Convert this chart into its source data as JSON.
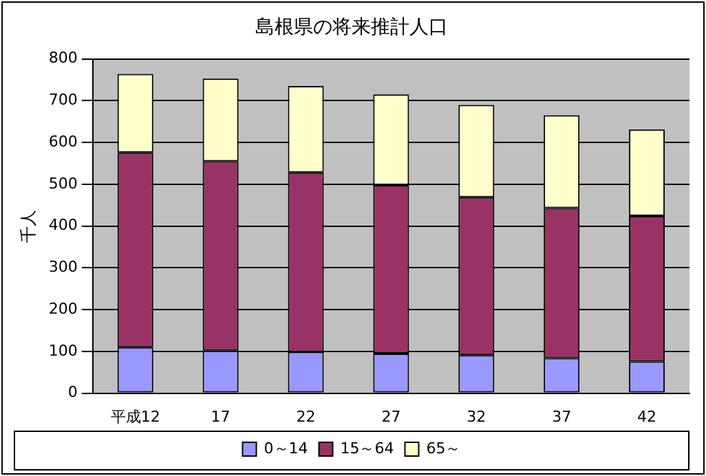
{
  "chart_data": {
    "type": "bar",
    "stacked": true,
    "title": "島根県の将来推計人口",
    "ylabel": "千人",
    "categories": [
      "平成12",
      "17",
      "22",
      "27",
      "32",
      "37",
      "42"
    ],
    "series": [
      {
        "name": "0～14",
        "color": "#9999ff",
        "values": [
          110,
          102,
          99,
          95,
          91,
          84,
          76
        ]
      },
      {
        "name": "15～64",
        "color": "#993366",
        "values": [
          466,
          453,
          429,
          403,
          378,
          359,
          348
        ]
      },
      {
        "name": "65～",
        "color": "#ffffcc",
        "values": [
          188,
          198,
          207,
          217,
          221,
          222,
          207
        ]
      }
    ],
    "ylim": [
      0,
      800
    ],
    "yticks": [
      0,
      100,
      200,
      300,
      400,
      500,
      600,
      700,
      800
    ],
    "grid": "y",
    "legend": "bottom"
  }
}
